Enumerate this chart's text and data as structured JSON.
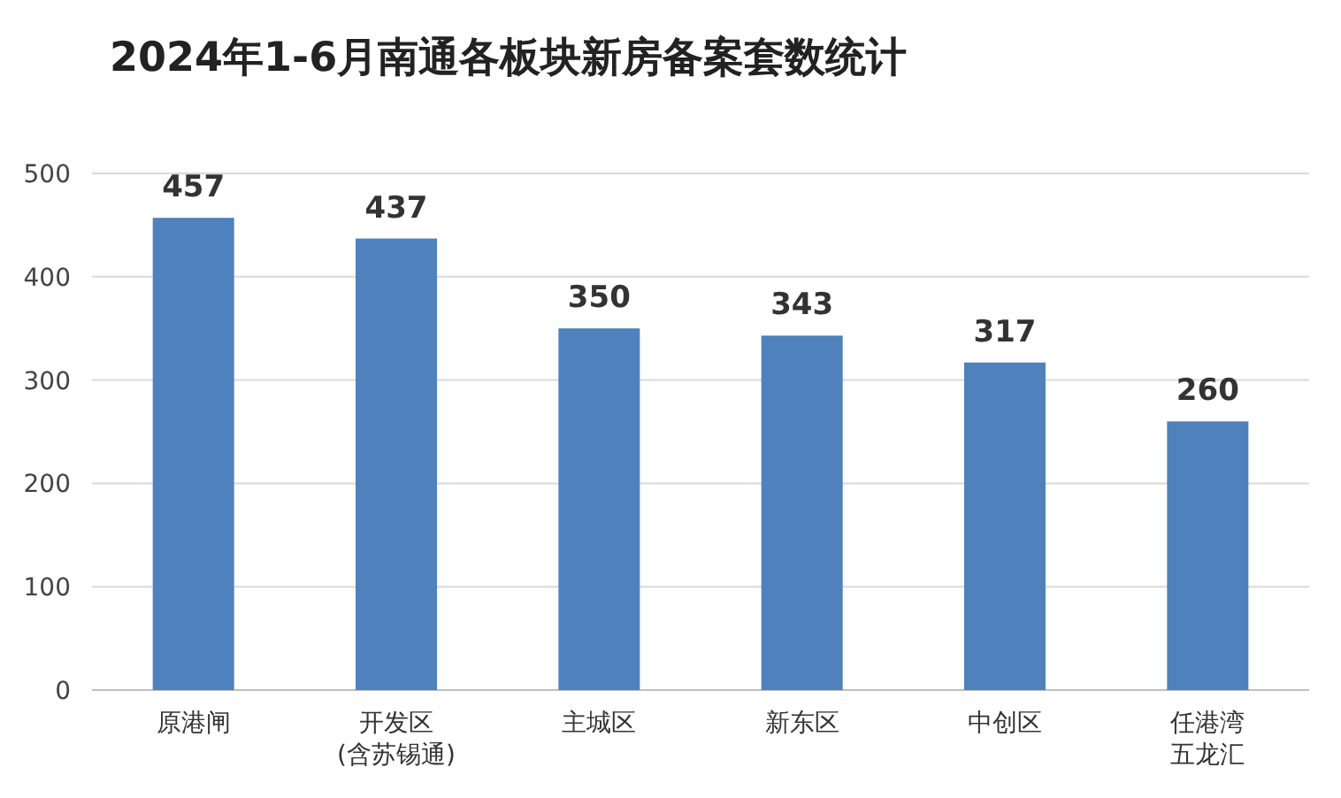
{
  "chart_data": {
    "type": "bar",
    "title": "2024年1-6月南通各板块新房备案套数统计",
    "categories": [
      "原港闸",
      "开发区\n(含苏锡通)",
      "主城区",
      "新东区",
      "中创区",
      "任港湾五龙汇"
    ],
    "values": [
      457,
      437,
      350,
      343,
      317,
      260
    ],
    "color": "#4f81bd",
    "ylim": [
      0,
      500
    ],
    "yticks": [
      0,
      100,
      200,
      300,
      400,
      500
    ],
    "grid": "y",
    "data_labels": true
  }
}
